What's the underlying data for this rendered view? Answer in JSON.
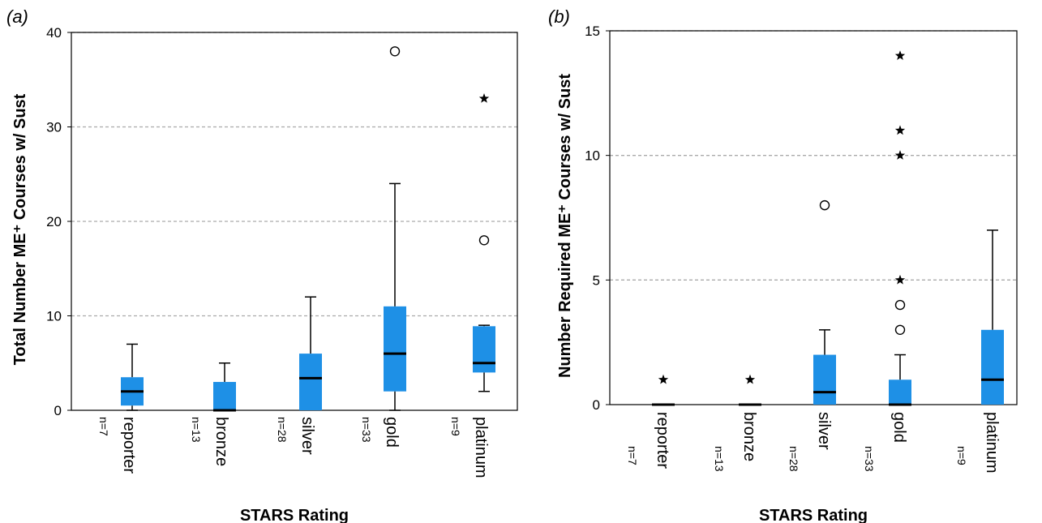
{
  "colors": {
    "box": "#1e90e6",
    "median": "#000000",
    "grid": "#aaaaaa",
    "axis": "#000000"
  },
  "chart_data": [
    {
      "panel": "(a)",
      "type": "boxplot",
      "ylabel": "Total Number ME⁺ Courses w/ Sust",
      "xlabel": "STARS Rating",
      "ylim": [
        0,
        40
      ],
      "yticks": [
        "0",
        "10",
        "20",
        "30",
        "40"
      ],
      "grid": "dashed horizontal at 10, 20, 30, 40",
      "categories": [
        {
          "label": "reporter",
          "n": "n=7",
          "q1": 0.5,
          "median": 2,
          "q3": 3.5,
          "whisker_low": 0,
          "whisker_high": 7,
          "outliers": []
        },
        {
          "label": "bronze",
          "n": "n=13",
          "q1": 0,
          "median": 0,
          "q3": 3,
          "whisker_low": 0,
          "whisker_high": 5,
          "outliers": []
        },
        {
          "label": "silver",
          "n": "n=28",
          "q1": 0,
          "median": 3.4,
          "q3": 6,
          "whisker_low": 0,
          "whisker_high": 12,
          "outliers": []
        },
        {
          "label": "gold",
          "n": "n=33",
          "q1": 2,
          "median": 6,
          "q3": 11,
          "whisker_low": 0,
          "whisker_high": 24,
          "outliers": [
            {
              "value": 38,
              "marker": "circle"
            }
          ]
        },
        {
          "label": "platinum",
          "n": "n=9",
          "q1": 4,
          "median": 5,
          "q3": 8.9,
          "whisker_low": 2,
          "whisker_high": 9,
          "outliers": [
            {
              "value": 18,
              "marker": "circle"
            },
            {
              "value": 33,
              "marker": "star"
            }
          ]
        }
      ]
    },
    {
      "panel": "(b)",
      "type": "boxplot",
      "ylabel": "Number Required ME⁺ Courses w/ Sust",
      "xlabel": "STARS Rating",
      "ylim": [
        0,
        15
      ],
      "yticks": [
        "0",
        "5",
        "10",
        "15"
      ],
      "grid": "dashed horizontal at 5, 10",
      "categories": [
        {
          "label": "reporter",
          "n": "n=7",
          "q1": 0,
          "median": 0,
          "q3": 0,
          "whisker_low": 0,
          "whisker_high": 0,
          "outliers": [
            {
              "value": 1,
              "marker": "star"
            }
          ]
        },
        {
          "label": "bronze",
          "n": "n=13",
          "q1": 0,
          "median": 0,
          "q3": 0,
          "whisker_low": 0,
          "whisker_high": 0,
          "outliers": [
            {
              "value": 1,
              "marker": "star"
            }
          ]
        },
        {
          "label": "silver",
          "n": "n=28",
          "q1": 0,
          "median": 0.5,
          "q3": 2,
          "whisker_low": 0,
          "whisker_high": 3,
          "outliers": [
            {
              "value": 8,
              "marker": "circle"
            }
          ]
        },
        {
          "label": "gold",
          "n": "n=33",
          "q1": 0,
          "median": 0,
          "q3": 1,
          "whisker_low": 0,
          "whisker_high": 2,
          "outliers": [
            {
              "value": 3,
              "marker": "circle"
            },
            {
              "value": 4,
              "marker": "circle"
            },
            {
              "value": 5,
              "marker": "star"
            },
            {
              "value": 10,
              "marker": "star"
            },
            {
              "value": 11,
              "marker": "star"
            },
            {
              "value": 14,
              "marker": "star"
            }
          ]
        },
        {
          "label": "platinum",
          "n": "n=9",
          "q1": 0,
          "median": 1,
          "q3": 3,
          "whisker_low": 0,
          "whisker_high": 7,
          "outliers": []
        }
      ]
    }
  ]
}
